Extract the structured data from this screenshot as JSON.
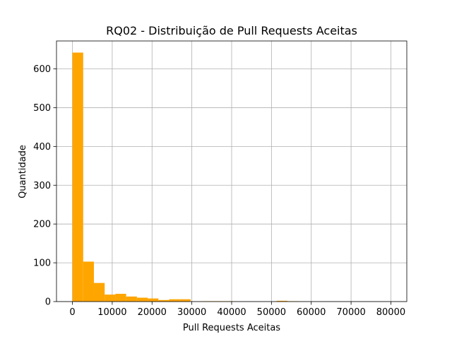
{
  "chart_data": {
    "type": "bar",
    "title": "RQ02 - Distribuição de Pull Requests Aceitas",
    "xlabel": "Pull Requests Aceitas",
    "ylabel": "Quantidade",
    "xlim": [
      -4000,
      84000
    ],
    "ylim": [
      0,
      672
    ],
    "xticks": [
      0,
      10000,
      20000,
      30000,
      40000,
      50000,
      60000,
      70000,
      80000
    ],
    "yticks": [
      0,
      100,
      200,
      300,
      400,
      500,
      600
    ],
    "grid": true,
    "bar_color": "#ffa500",
    "bin_width": 2700,
    "bins": [
      {
        "x0": 0,
        "x1": 2700,
        "count": 642
      },
      {
        "x0": 2700,
        "x1": 5400,
        "count": 103
      },
      {
        "x0": 5400,
        "x1": 8100,
        "count": 48
      },
      {
        "x0": 8100,
        "x1": 10800,
        "count": 18
      },
      {
        "x0": 10800,
        "x1": 13500,
        "count": 20
      },
      {
        "x0": 13500,
        "x1": 16200,
        "count": 13
      },
      {
        "x0": 16200,
        "x1": 18900,
        "count": 10
      },
      {
        "x0": 18900,
        "x1": 21600,
        "count": 8
      },
      {
        "x0": 21600,
        "x1": 24300,
        "count": 4
      },
      {
        "x0": 24300,
        "x1": 27000,
        "count": 6
      },
      {
        "x0": 27000,
        "x1": 29700,
        "count": 6
      },
      {
        "x0": 32400,
        "x1": 35100,
        "count": 1
      },
      {
        "x0": 35100,
        "x1": 37800,
        "count": 1
      },
      {
        "x0": 37800,
        "x1": 40500,
        "count": 1
      },
      {
        "x0": 51300,
        "x1": 54000,
        "count": 2
      },
      {
        "x0": 54000,
        "x1": 56700,
        "count": 1
      }
    ]
  }
}
